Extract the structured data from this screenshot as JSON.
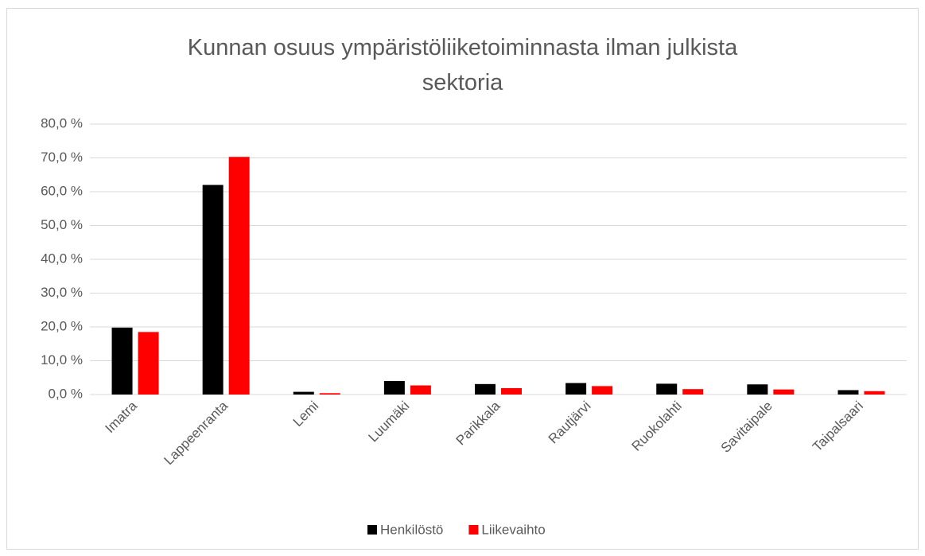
{
  "chart_data": {
    "type": "bar",
    "title": "Kunnan osuus ympäristöliiketoiminnasta ilman julkista sektoria",
    "categories": [
      "Imatra",
      "Lappeenranta",
      "Lemi",
      "Luumäki",
      "Parikkala",
      "Rautjärvi",
      "Ruokolahti",
      "Savitaipale",
      "Taipalsaari"
    ],
    "series": [
      {
        "name": "Henkilöstö",
        "color": "#000000",
        "values": [
          19.8,
          62.0,
          0.8,
          4.0,
          3.1,
          3.4,
          3.2,
          3.0,
          1.3
        ]
      },
      {
        "name": "Liikevaihto",
        "color": "#ff0000",
        "values": [
          18.5,
          70.3,
          0.4,
          2.7,
          1.9,
          2.5,
          1.6,
          1.5,
          1.0
        ]
      }
    ],
    "ylim": [
      0,
      80
    ],
    "yticks": [
      {
        "value": 0,
        "label": "0,0 %"
      },
      {
        "value": 10,
        "label": "10,0 %"
      },
      {
        "value": 20,
        "label": "20,0 %"
      },
      {
        "value": 30,
        "label": "30,0 %"
      },
      {
        "value": 40,
        "label": "40,0 %"
      },
      {
        "value": 50,
        "label": "50,0 %"
      },
      {
        "value": 60,
        "label": "60,0 %"
      },
      {
        "value": 70,
        "label": "70,0 %"
      },
      {
        "value": 80,
        "label": "80,0 %"
      }
    ],
    "grid": true,
    "legend": "bottom"
  }
}
